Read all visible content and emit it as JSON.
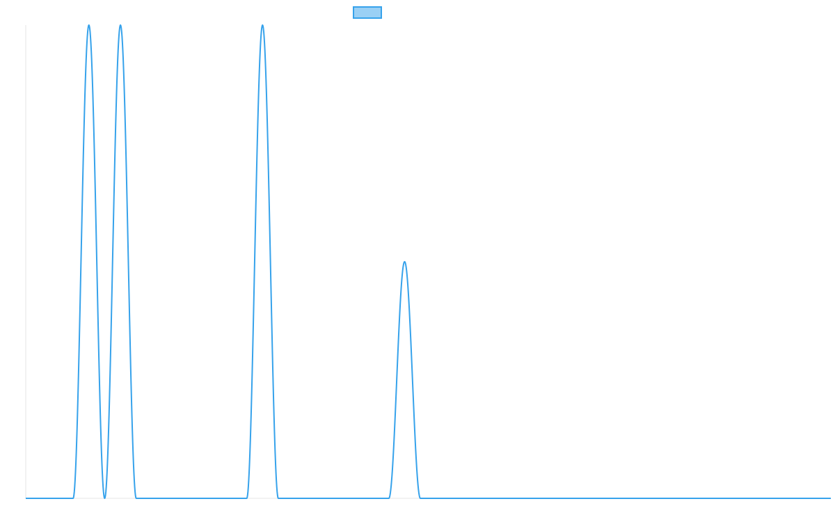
{
  "chart_data": {
    "type": "line",
    "title": "",
    "xlabel": "",
    "ylabel": "",
    "grid": false,
    "legend": {
      "position": "top-center",
      "entries": [
        {
          "label": "",
          "swatch_fill": "#9ad0f5",
          "swatch_stroke": "#36a2eb"
        }
      ]
    },
    "x_range": [
      0,
      51
    ],
    "y_range": [
      0,
      1
    ],
    "series": [
      {
        "color": "#36a2eb",
        "peaks": [
          {
            "center": 4,
            "height": 1.0,
            "halfwidth": 1.0
          },
          {
            "center": 6,
            "height": 1.0,
            "halfwidth": 1.0
          },
          {
            "center": 15,
            "height": 1.0,
            "halfwidth": 1.0
          },
          {
            "center": 24,
            "height": 0.5,
            "halfwidth": 1.0
          }
        ]
      }
    ]
  }
}
